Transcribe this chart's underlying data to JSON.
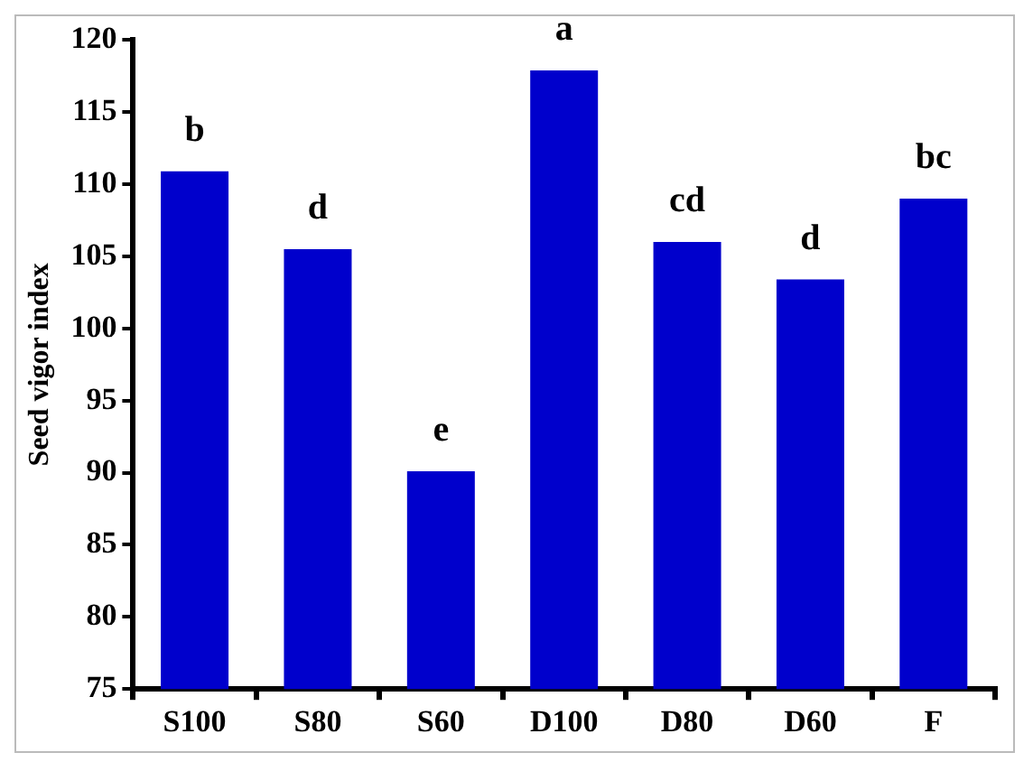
{
  "chart_data": {
    "type": "bar",
    "ylabel": "Seed vigor index",
    "categories": [
      "S100",
      "S80",
      "S60",
      "D100",
      "D80",
      "D60",
      "F"
    ],
    "values": [
      110.9,
      105.5,
      90.1,
      117.9,
      106.0,
      103.4,
      109.0
    ],
    "color": "#0000cc",
    "ylim": [
      75,
      120
    ],
    "yticks": [
      75,
      80,
      85,
      90,
      95,
      100,
      105,
      110,
      115,
      120
    ],
    "grid": false,
    "legend": false,
    "annotations": [
      {
        "text": "b",
        "x": "S100",
        "y": 110.9
      },
      {
        "text": "d",
        "x": "S80",
        "y": 105.5
      },
      {
        "text": "e",
        "x": "S60",
        "y": 90.1
      },
      {
        "text": "a",
        "x": "D100",
        "y": 117.9
      },
      {
        "text": "cd",
        "x": "D80",
        "y": 106.0
      },
      {
        "text": "d",
        "x": "D60",
        "y": 103.4
      },
      {
        "text": "bc",
        "x": "F",
        "y": 109.0
      }
    ]
  }
}
